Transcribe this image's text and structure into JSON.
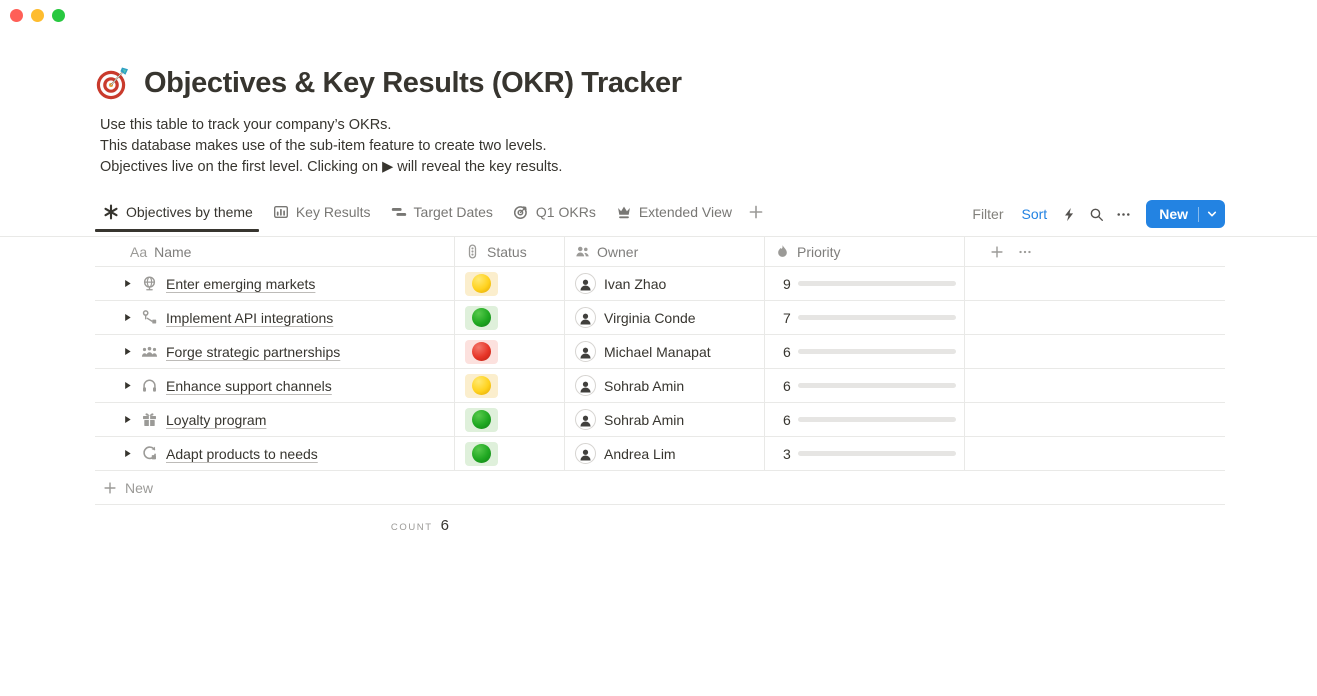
{
  "window": {
    "traffic_lights": {
      "close": "#ff5f57",
      "minimize": "#febc2e",
      "zoom": "#28c840"
    }
  },
  "page": {
    "title": "Objectives & Key Results (OKR) Tracker",
    "title_icon": "dartboard",
    "description_lines": [
      "Use this table to track your company’s OKRs.",
      "This database makes use of the sub-item feature to create two levels.",
      "Objectives live on the first level. Clicking on ▶ will reveal the key results."
    ]
  },
  "toolbar": {
    "tabs": [
      {
        "label": "Objectives by theme",
        "icon": "asterisk-view",
        "active": true
      },
      {
        "label": "Key Results",
        "icon": "chart-view",
        "active": false
      },
      {
        "label": "Target Dates",
        "icon": "timeline-view",
        "active": false
      },
      {
        "label": "Q1 OKRs",
        "icon": "target-view",
        "active": false
      },
      {
        "label": "Extended View",
        "icon": "crown-view",
        "active": false
      }
    ],
    "filter_label": "Filter",
    "sort_label": "Sort",
    "new_button_label": "New"
  },
  "table": {
    "columns": [
      {
        "label": "Name",
        "icon_text": "Aa"
      },
      {
        "label": "Status",
        "icon": "traffic-light"
      },
      {
        "label": "Owner",
        "icon": "people"
      },
      {
        "label": "Priority",
        "icon": "flame"
      }
    ],
    "rows": [
      {
        "name": "Enter emerging markets",
        "icon": "globe",
        "status": "yellow",
        "owner": "Ivan Zhao",
        "priority": 9
      },
      {
        "name": "Implement API integrations",
        "icon": "workflow",
        "status": "green",
        "owner": "Virginia Conde",
        "priority": 7
      },
      {
        "name": "Forge strategic partnerships",
        "icon": "people-group",
        "status": "red",
        "owner": "Michael Manapat",
        "priority": 6
      },
      {
        "name": "Enhance support channels",
        "icon": "headset",
        "status": "yellow",
        "owner": "Sohrab Amin",
        "priority": 6
      },
      {
        "name": "Loyalty program",
        "icon": "gift",
        "status": "green",
        "owner": "Sohrab Amin",
        "priority": 6
      },
      {
        "name": "Adapt products to needs",
        "icon": "sync",
        "status": "green",
        "owner": "Andrea Lim",
        "priority": 3
      }
    ],
    "priority_scale_max": 10,
    "new_row_label": "New",
    "footer": {
      "count_label": "COUNT",
      "count_value": "6"
    }
  },
  "colors": {
    "accent": "#2383e2",
    "priority_bar_fill": "#558264",
    "priority_bar_track": "#e6e5e3",
    "status": {
      "yellow": {
        "bg": "#fbeecd",
        "light": "#ffe973",
        "main": "#ffd21e",
        "dark": "#dfa300"
      },
      "green": {
        "bg": "#dff0db",
        "light": "#57c94c",
        "main": "#1fa821",
        "dark": "#0f7d14"
      },
      "red": {
        "bg": "#fce1de",
        "light": "#f3776b",
        "main": "#e73527",
        "dark": "#b81f12"
      }
    }
  }
}
